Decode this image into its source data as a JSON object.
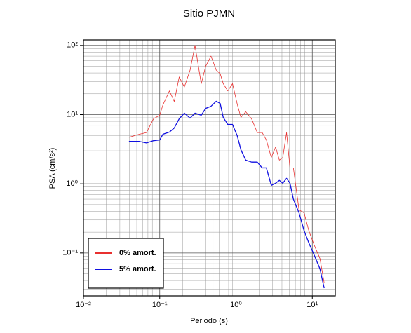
{
  "chart_data": {
    "type": "line",
    "title": "Sitio PJMN",
    "x_label": "Periodo (s)",
    "y_label": "PSA (cm/s²)",
    "x_scale": "log",
    "y_scale": "log",
    "grid": true,
    "minor_grid": true,
    "legend": "lower left",
    "xlim": [
      0.01,
      20
    ],
    "ylim": [
      0.024,
      120
    ],
    "xticks": [
      {
        "value": 0.01,
        "label": "10⁻²"
      },
      {
        "value": 0.1,
        "label": "10⁻¹"
      },
      {
        "value": 1,
        "label": "10⁰"
      },
      {
        "value": 10,
        "label": "10¹"
      }
    ],
    "yticks": [
      {
        "value": 0.1,
        "label": "10⁻¹"
      },
      {
        "value": 1,
        "label": "10⁰"
      },
      {
        "value": 10,
        "label": "10¹"
      },
      {
        "value": 100,
        "label": "10²"
      }
    ],
    "x": [
      0.0395,
      0.054,
      0.067,
      0.083,
      0.1,
      0.11,
      0.134,
      0.155,
      0.18,
      0.21,
      0.25,
      0.29,
      0.35,
      0.4,
      0.47,
      0.55,
      0.62,
      0.68,
      0.78,
      0.9,
      1.04,
      1.16,
      1.34,
      1.6,
      1.9,
      2.2,
      2.5,
      2.9,
      3.3,
      3.7,
      4.1,
      4.6,
      5.1,
      5.65,
      6.7,
      7.8,
      9.0,
      10.6,
      12.6,
      14.3
    ],
    "series": [
      {
        "name": "0% amort.",
        "color": "#e8302f",
        "width": 0.8,
        "values": [
          4.7,
          5.2,
          5.5,
          8.7,
          9.8,
          13.8,
          22,
          15.5,
          35,
          25,
          44,
          100,
          28,
          50,
          70,
          44,
          39,
          28,
          22,
          28,
          14,
          9.1,
          11,
          8.7,
          5.5,
          5.5,
          4.3,
          2.4,
          3.4,
          2.2,
          2.4,
          5.5,
          1.7,
          1.7,
          0.42,
          0.38,
          0.21,
          0.13,
          0.083,
          0.037
        ]
      },
      {
        "name": "5% amort.",
        "color": "#1010e0",
        "width": 1.3,
        "values": [
          4.1,
          4.1,
          3.9,
          4.2,
          4.3,
          5.2,
          5.6,
          6.4,
          8.7,
          10.5,
          8.9,
          10.5,
          9.8,
          12.3,
          13.2,
          15.6,
          14.5,
          9.1,
          7.2,
          7.2,
          4.9,
          3.1,
          2.2,
          2.06,
          2.06,
          1.7,
          1.7,
          0.95,
          1.02,
          1.12,
          1.02,
          1.2,
          1.02,
          0.6,
          0.38,
          0.21,
          0.14,
          0.093,
          0.059,
          0.031
        ]
      }
    ]
  }
}
